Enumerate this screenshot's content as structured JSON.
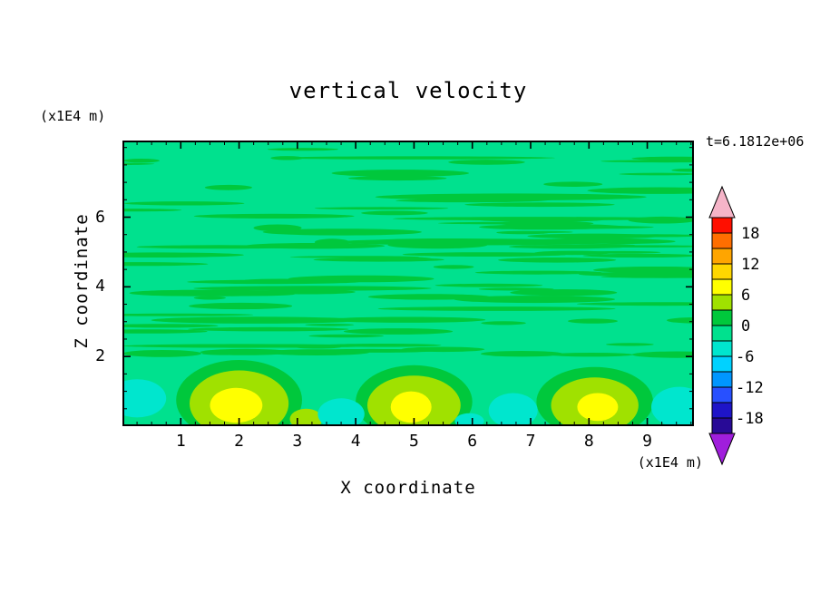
{
  "chart_data": {
    "type": "contour",
    "title": "vertical velocity",
    "time_annotation": "t=6.1812e+06",
    "xlabel": "X coordinate",
    "ylabel": "Z coordinate",
    "x_unit": "(x1E4 m)",
    "y_unit": "(x1E4 m)",
    "xlim": [
      0,
      9.8
    ],
    "ylim": [
      0,
      8.2
    ],
    "x_ticks": [
      1,
      2,
      3,
      4,
      5,
      6,
      7,
      8,
      9
    ],
    "y_ticks": [
      2,
      4,
      6
    ],
    "x_minor_step": 0.25,
    "y_minor_step": 0.5,
    "contour_interval": 3,
    "grid": false,
    "legend_position": "right-colorbar",
    "colorbar": {
      "labels": [
        "18",
        "12",
        "6",
        "0",
        "-6",
        "-12",
        "-18"
      ],
      "values": [
        18,
        12,
        6,
        0,
        -6,
        -12,
        -18
      ],
      "segment_colors_top_to_bottom": [
        "#FF0F00",
        "#FF6E00",
        "#FFA500",
        "#FFD700",
        "#FFFF00",
        "#A0E100",
        "#00C83C",
        "#00E18E",
        "#00E6CE",
        "#00D2FF",
        "#0096FF",
        "#2850FF",
        "#1E14C8",
        "#280A96"
      ],
      "over_arrow_color": "#F5B4C8",
      "under_arrow_color": "#A01EDC"
    },
    "field": {
      "description": "Near-zero (green) vertical velocity aloft with thin wavy horizontal bands; boundary-layer updraft plumes (+6 to +9, yellow-green with yellow cores) near the surface at x ~ 2, 5, 8 and weak downdraft patches (about -6, teal) at x ~ 0.3, 3.8, 6.7, 9.6",
      "background_value_band": "0 to -3",
      "background_color": "#00E18E",
      "streak_color": "#00C83C",
      "plume_color": "#A0E100",
      "core_color": "#FFFF00",
      "downdraft_color": "#00E6CE",
      "rings": [
        {
          "x": 2.0,
          "z": 0.75,
          "rx": 1.08,
          "rz": 1.15
        },
        {
          "x": 5.0,
          "z": 0.7,
          "rx": 1.0,
          "rz": 1.05
        },
        {
          "x": 8.1,
          "z": 0.7,
          "rx": 1.0,
          "rz": 1.0
        }
      ],
      "updraft_plumes": [
        {
          "x": 2.0,
          "z": 0.65,
          "rx": 0.85,
          "rz": 0.95
        },
        {
          "x": 5.0,
          "z": 0.6,
          "rx": 0.8,
          "rz": 0.85
        },
        {
          "x": 8.1,
          "z": 0.6,
          "rx": 0.75,
          "rz": 0.8
        },
        {
          "x": 3.15,
          "z": 0.2,
          "rx": 0.28,
          "rz": 0.3
        }
      ],
      "plume_cores": [
        {
          "x": 1.95,
          "z": 0.6,
          "rx": 0.45,
          "rz": 0.5
        },
        {
          "x": 4.95,
          "z": 0.55,
          "rx": 0.35,
          "rz": 0.45
        },
        {
          "x": 8.15,
          "z": 0.55,
          "rx": 0.35,
          "rz": 0.4
        }
      ],
      "downdrafts": [
        {
          "x": 0.25,
          "z": 0.8,
          "rx": 0.5,
          "rz": 0.55
        },
        {
          "x": 3.75,
          "z": 0.35,
          "rx": 0.4,
          "rz": 0.45
        },
        {
          "x": 6.7,
          "z": 0.45,
          "rx": 0.42,
          "rz": 0.5
        },
        {
          "x": 9.55,
          "z": 0.55,
          "rx": 0.48,
          "rz": 0.58
        },
        {
          "x": 5.95,
          "z": 0.15,
          "rx": 0.25,
          "rz": 0.22
        }
      ]
    }
  }
}
